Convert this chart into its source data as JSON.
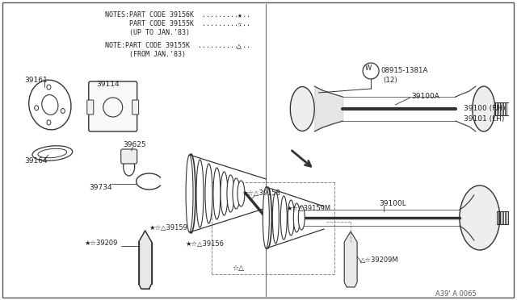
{
  "bg_color": "#ffffff",
  "border_color": "#444444",
  "lc": "#333333",
  "tc": "#222222",
  "notes_line1": "NOTES:PART CODE 39156K ............",
  "notes_line2": "      PART CODE 39155K ............",
  "notes_line3": "      (UP TO JAN.'83)",
  "notes_line4": "NOTE:PART CODE 39155K .............",
  "notes_line5": "      (FROM JAN.'83)",
  "sym1": "★",
  "sym2": "☆",
  "sym3": "△",
  "diagram_code": "A39' A 0065"
}
